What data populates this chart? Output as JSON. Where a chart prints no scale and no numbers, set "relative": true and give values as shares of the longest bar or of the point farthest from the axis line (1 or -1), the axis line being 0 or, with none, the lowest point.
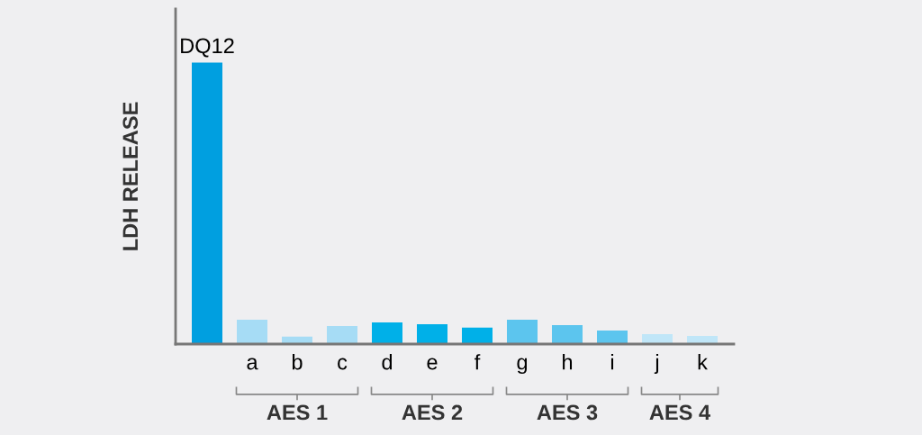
{
  "chart_data": {
    "type": "bar",
    "relative": true,
    "ylabel": "LDH RELEASE",
    "categories": [
      null,
      "a",
      "b",
      "c",
      "d",
      "e",
      "f",
      "g",
      "h",
      "i",
      "j",
      "k"
    ],
    "values": [
      1,
      0.086,
      0.026,
      0.064,
      0.077,
      0.07,
      0.058,
      0.086,
      0.067,
      0.048,
      0.035,
      0.029
    ],
    "colors": [
      "#009fe0",
      "#a6dcf5",
      "#a6dcf5",
      "#a6dcf5",
      "#00b0e8",
      "#00b0e8",
      "#00b0e8",
      "#5cc5ee",
      "#5cc5ee",
      "#5cc5ee",
      "#c0e6f8",
      "#c0e6f8"
    ],
    "annotations": [
      {
        "text": "DQ12",
        "y": 1
      },
      "AES 1",
      "AES 2",
      "AES 3",
      "AES 4"
    ],
    "grid": false,
    "legend": false
  }
}
